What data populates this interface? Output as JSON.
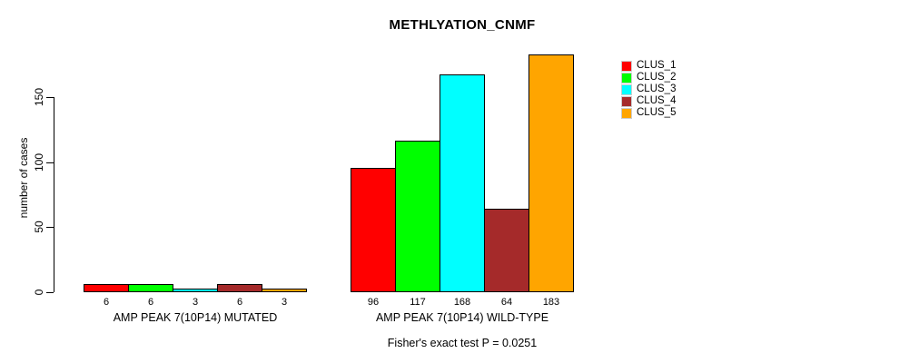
{
  "chart_data": {
    "type": "bar",
    "title": "METHLYATION_CNMF",
    "categories": [
      "AMP PEAK 7(10P14) MUTATED",
      "AMP PEAK 7(10P14) WILD-TYPE"
    ],
    "series": [
      {
        "name": "CLUS_1",
        "color": "#ff0000",
        "values": [
          6,
          96
        ]
      },
      {
        "name": "CLUS_2",
        "color": "#00ff00",
        "values": [
          6,
          117
        ]
      },
      {
        "name": "CLUS_3",
        "color": "#00ffff",
        "values": [
          3,
          168
        ]
      },
      {
        "name": "CLUS_4",
        "color": "#a52a2a",
        "values": [
          6,
          64
        ]
      },
      {
        "name": "CLUS_5",
        "color": "#ffa500",
        "values": [
          3,
          183
        ]
      }
    ],
    "xlabel": "",
    "ylabel": "number of cases",
    "yticks": [
      0,
      50,
      100,
      150
    ],
    "ylim": [
      0,
      190
    ],
    "grid": false,
    "bar_value_labels": true,
    "legend_position": "right",
    "annotation": "Fisher's exact test P = 0.0251"
  }
}
